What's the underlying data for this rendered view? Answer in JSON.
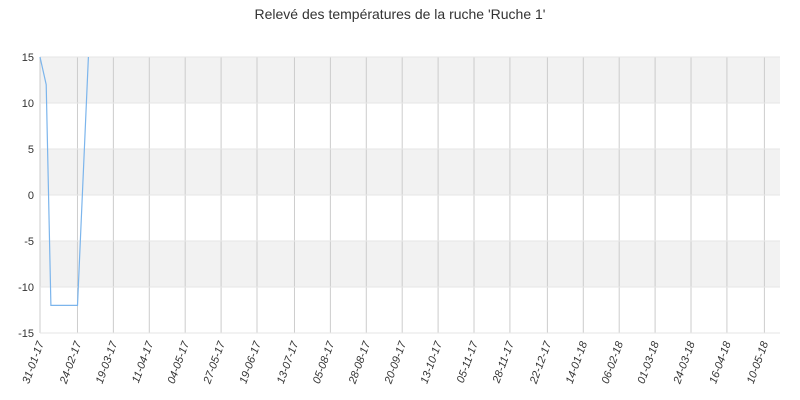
{
  "chart_data": {
    "type": "line",
    "title": "Relevé des températures de la ruche 'Ruche 1'",
    "xlabel": "",
    "ylabel": "",
    "ylim": [
      -15,
      15
    ],
    "yticks": [
      15,
      10,
      5,
      0,
      -5,
      -10,
      -15
    ],
    "xlim": [
      "2017-01-31",
      "2018-05-20"
    ],
    "xtick_labels": [
      {
        "date": "2017-01-31",
        "label": "31-01-17"
      },
      {
        "date": "2017-02-24",
        "label": "24-02-17"
      },
      {
        "date": "2017-03-19",
        "label": "19-03-17"
      },
      {
        "date": "2017-04-11",
        "label": "11-04-17"
      },
      {
        "date": "2017-05-04",
        "label": "04-05-17"
      },
      {
        "date": "2017-05-27",
        "label": "27-05-17"
      },
      {
        "date": "2017-06-19",
        "label": "19-06-17"
      },
      {
        "date": "2017-07-13",
        "label": "13-07-17"
      },
      {
        "date": "2017-08-05",
        "label": "05-08-17"
      },
      {
        "date": "2017-08-28",
        "label": "28-08-17"
      },
      {
        "date": "2017-09-20",
        "label": "20-09-17"
      },
      {
        "date": "2017-10-13",
        "label": "13-10-17"
      },
      {
        "date": "2017-11-05",
        "label": "05-11-17"
      },
      {
        "date": "2017-11-28",
        "label": "28-11-17"
      },
      {
        "date": "2017-12-22",
        "label": "22-12-17"
      },
      {
        "date": "2018-01-14",
        "label": "14-01-18"
      },
      {
        "date": "2018-02-06",
        "label": "06-02-18"
      },
      {
        "date": "2018-03-01",
        "label": "01-03-18"
      },
      {
        "date": "2018-03-24",
        "label": "24-03-18"
      },
      {
        "date": "2018-04-16",
        "label": "16-04-18"
      },
      {
        "date": "2018-05-10",
        "label": "10-05-18"
      }
    ],
    "grid": true,
    "series": [
      {
        "color": "#7cb5ec",
        "points": [
          {
            "x": "2017-01-31",
            "y": 15
          },
          {
            "x": "2017-02-04",
            "y": 12
          },
          {
            "x": "2017-02-07",
            "y": -12
          },
          {
            "x": "2017-02-24",
            "y": -12
          },
          {
            "x": "2017-03-03",
            "y": 15
          }
        ]
      }
    ]
  }
}
